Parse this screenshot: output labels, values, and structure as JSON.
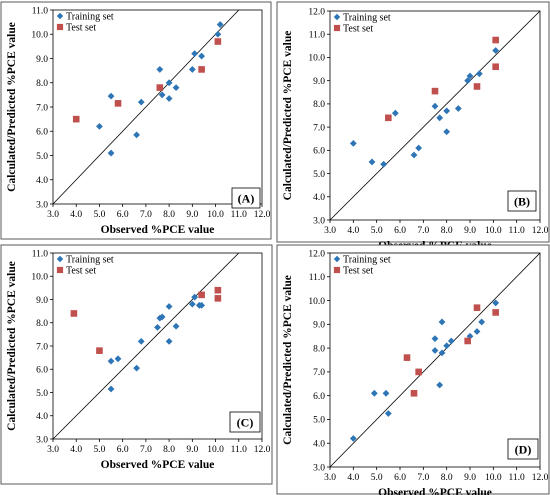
{
  "chart_data": [
    {
      "type": "scatter",
      "panel_label": "(A)",
      "xlabel": "Observed %PCE value",
      "ylabel": "Calculated/Predicted %PCE value",
      "xlim": [
        3.0,
        12.0
      ],
      "ylim": [
        3.0,
        11.0
      ],
      "x_ticks": [
        "3.0",
        "4.0",
        "5.0",
        "6.0",
        "7.0",
        "8.0",
        "9.0",
        "10.0",
        "11.0",
        "12.0"
      ],
      "y_ticks": [
        "3.0",
        "4.0",
        "5.0",
        "6.0",
        "7.0",
        "8.0",
        "9.0",
        "10.0",
        "11.0"
      ],
      "legend_position": "top-left",
      "reference_line": "y = x",
      "series": [
        {
          "name": "Training set",
          "marker": "diamond",
          "color": "#2e75b6",
          "points": [
            [
              5.0,
              6.2
            ],
            [
              5.5,
              7.45
            ],
            [
              5.5,
              5.1
            ],
            [
              6.6,
              5.85
            ],
            [
              6.8,
              7.2
            ],
            [
              7.6,
              8.55
            ],
            [
              7.7,
              7.5
            ],
            [
              8.0,
              8.0
            ],
            [
              8.0,
              7.35
            ],
            [
              8.3,
              7.8
            ],
            [
              9.0,
              8.55
            ],
            [
              9.1,
              9.2
            ],
            [
              9.4,
              9.1
            ],
            [
              10.1,
              10.0
            ],
            [
              10.2,
              10.4
            ]
          ]
        },
        {
          "name": "Test set",
          "marker": "square",
          "color": "#c0504d",
          "points": [
            [
              4.0,
              6.5
            ],
            [
              5.8,
              7.15
            ],
            [
              7.6,
              7.8
            ],
            [
              9.4,
              8.55
            ],
            [
              10.1,
              9.7
            ]
          ]
        }
      ]
    },
    {
      "type": "scatter",
      "panel_label": "(B)",
      "xlabel": "Observed %PCE value",
      "ylabel": "Calculated/Predicted %PCE value",
      "xlim": [
        3.0,
        12.0
      ],
      "ylim": [
        3.0,
        12.0
      ],
      "x_ticks": [
        "3.0",
        "4.0",
        "5.0",
        "6.0",
        "7.0",
        "8.0",
        "9.0",
        "10.0",
        "11.0",
        "12.0"
      ],
      "y_ticks": [
        "3.0",
        "4.0",
        "5.0",
        "6.0",
        "7.0",
        "8.0",
        "9.0",
        "10.0",
        "11.0",
        "12.0"
      ],
      "legend_position": "top-left",
      "reference_line": "y = x",
      "series": [
        {
          "name": "Training set",
          "marker": "diamond",
          "color": "#2e75b6",
          "points": [
            [
              4.0,
              6.3
            ],
            [
              4.8,
              5.5
            ],
            [
              5.3,
              5.4
            ],
            [
              5.8,
              7.6
            ],
            [
              6.6,
              5.8
            ],
            [
              6.8,
              6.1
            ],
            [
              7.5,
              7.9
            ],
            [
              7.7,
              7.4
            ],
            [
              8.0,
              6.8
            ],
            [
              8.0,
              7.7
            ],
            [
              8.5,
              7.8
            ],
            [
              8.9,
              9.0
            ],
            [
              9.0,
              9.2
            ],
            [
              9.4,
              9.3
            ],
            [
              10.1,
              10.3
            ]
          ]
        },
        {
          "name": "Test set",
          "marker": "square",
          "color": "#c0504d",
          "points": [
            [
              5.5,
              7.4
            ],
            [
              7.5,
              8.55
            ],
            [
              9.3,
              8.75
            ],
            [
              10.1,
              9.6
            ],
            [
              10.1,
              10.75
            ]
          ]
        }
      ]
    },
    {
      "type": "scatter",
      "panel_label": "(C)",
      "xlabel": "Observed %PCE value",
      "ylabel": "Calculated/Predicted %PCE value",
      "xlim": [
        3.0,
        12.0
      ],
      "ylim": [
        3.0,
        11.0
      ],
      "x_ticks": [
        "3.0",
        "4.0",
        "5.0",
        "6.0",
        "7.0",
        "8.0",
        "9.0",
        "10.0",
        "11.0",
        "12.0"
      ],
      "y_ticks": [
        "3.0",
        "4.0",
        "5.0",
        "6.0",
        "7.0",
        "8.0",
        "9.0",
        "10.0",
        "11.0"
      ],
      "legend_position": "top-left",
      "reference_line": "y = x",
      "series": [
        {
          "name": "Training set",
          "marker": "diamond",
          "color": "#2e75b6",
          "points": [
            [
              5.5,
              6.35
            ],
            [
              5.5,
              5.15
            ],
            [
              5.8,
              6.45
            ],
            [
              6.6,
              6.05
            ],
            [
              6.8,
              7.2
            ],
            [
              7.5,
              7.8
            ],
            [
              7.6,
              8.2
            ],
            [
              7.7,
              8.25
            ],
            [
              8.0,
              7.2
            ],
            [
              8.0,
              8.7
            ],
            [
              8.3,
              7.85
            ],
            [
              9.0,
              8.8
            ],
            [
              9.1,
              9.1
            ],
            [
              9.3,
              8.75
            ],
            [
              9.4,
              8.75
            ]
          ]
        },
        {
          "name": "Test set",
          "marker": "square",
          "color": "#c0504d",
          "points": [
            [
              3.9,
              8.4
            ],
            [
              5.0,
              6.8
            ],
            [
              9.4,
              9.2
            ],
            [
              10.1,
              9.4
            ],
            [
              10.1,
              9.05
            ]
          ]
        }
      ]
    },
    {
      "type": "scatter",
      "panel_label": "(D)",
      "xlabel": "Observed %PCE value",
      "ylabel": "Calculated/Predicted %PCE value",
      "xlim": [
        3.0,
        12.0
      ],
      "ylim": [
        3.0,
        12.0
      ],
      "x_ticks": [
        "3.0",
        "4.0",
        "5.0",
        "6.0",
        "7.0",
        "8.0",
        "9.0",
        "10.0",
        "11.0",
        "12.0"
      ],
      "y_ticks": [
        "3.0",
        "4.0",
        "5.0",
        "6.0",
        "7.0",
        "8.0",
        "9.0",
        "10.0",
        "11.0",
        "12.0"
      ],
      "legend_position": "top-left",
      "reference_line": "y = x",
      "series": [
        {
          "name": "Training set",
          "marker": "diamond",
          "color": "#2e75b6",
          "points": [
            [
              4.0,
              4.2
            ],
            [
              4.9,
              6.1
            ],
            [
              5.4,
              6.1
            ],
            [
              5.5,
              5.25
            ],
            [
              7.5,
              7.9
            ],
            [
              7.5,
              8.4
            ],
            [
              7.7,
              6.45
            ],
            [
              7.8,
              9.1
            ],
            [
              7.8,
              7.8
            ],
            [
              8.0,
              8.1
            ],
            [
              8.2,
              8.3
            ],
            [
              9.0,
              8.5
            ],
            [
              9.3,
              8.7
            ],
            [
              9.5,
              9.1
            ],
            [
              10.1,
              9.9
            ]
          ]
        },
        {
          "name": "Test set",
          "marker": "square",
          "color": "#c0504d",
          "points": [
            [
              6.3,
              7.6
            ],
            [
              6.6,
              6.1
            ],
            [
              6.8,
              7.0
            ],
            [
              8.9,
              8.3
            ],
            [
              9.3,
              9.7
            ],
            [
              10.1,
              9.5
            ]
          ]
        }
      ]
    }
  ]
}
